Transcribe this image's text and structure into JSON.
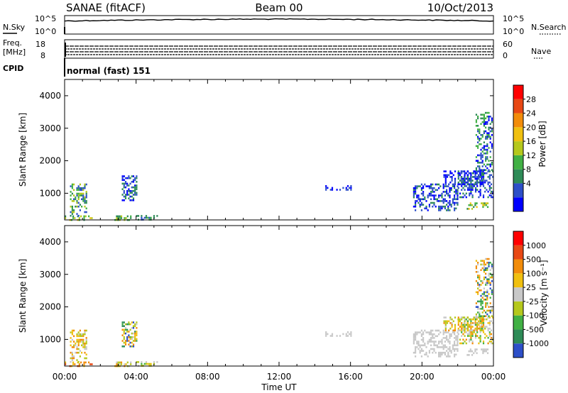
{
  "header": {
    "station": "SANAE (fitACF)",
    "beam": "Beam 00",
    "date": "10/Oct/2013"
  },
  "strips": {
    "nsky_label": "N.Sky",
    "nsky_top": "10^5",
    "nsky_bottom": "10^0",
    "nsearch_label": "N.Search",
    "nsearch_top": "10^5",
    "nsearch_bottom": "10^0",
    "freq_label_1": "Freq.",
    "freq_label_2": "[MHz]",
    "freq_top": "18",
    "freq_bottom": "8",
    "nave_label": "Nave",
    "nave_top": "60",
    "nave_bottom": "0",
    "cpid_label": "CPID",
    "cpid_value": "normal (fast) 151"
  },
  "chart_data": [
    {
      "type": "heatmap",
      "name": "power",
      "ylabel": "Slant Range [km]",
      "ylim": [
        180,
        4500
      ],
      "y_ticks": [
        "4000",
        "3000",
        "2000",
        "1000"
      ],
      "y_tick_values": [
        4000,
        3000,
        2000,
        1000
      ],
      "colorbar": {
        "label": "Power [dB]",
        "ticks": [
          "28",
          "24",
          "20",
          "16",
          "12",
          "8",
          "4"
        ],
        "colors": [
          "#0000ff",
          "#2d4fc8",
          "#2e8b57",
          "#41b044",
          "#b5c81c",
          "#f0c010",
          "#f28c0a",
          "#e84814",
          "#ff0000"
        ]
      },
      "echo_regions": [
        {
          "t0": 0.0,
          "t1": 1.5,
          "r0": 200,
          "r1": 320,
          "level": [
            2,
            5
          ]
        },
        {
          "t0": 0.3,
          "t1": 1.2,
          "r0": 300,
          "r1": 1300,
          "level": [
            1,
            4
          ]
        },
        {
          "t0": 2.7,
          "t1": 3.7,
          "r0": 180,
          "r1": 320,
          "level": [
            2,
            4
          ]
        },
        {
          "t0": 3.2,
          "t1": 4.0,
          "r0": 800,
          "r1": 1550,
          "level": [
            0,
            2
          ]
        },
        {
          "t0": 4.0,
          "t1": 5.2,
          "r0": 180,
          "r1": 330,
          "level": [
            1,
            3
          ]
        },
        {
          "t0": 14.5,
          "t1": 16.0,
          "r0": 1100,
          "r1": 1250,
          "level": [
            0,
            1
          ]
        },
        {
          "t0": 19.5,
          "t1": 22.0,
          "r0": 500,
          "r1": 1300,
          "level": [
            0,
            2
          ]
        },
        {
          "t0": 21.2,
          "t1": 23.5,
          "r0": 1300,
          "r1": 1700,
          "level": [
            0,
            1
          ]
        },
        {
          "t0": 22.0,
          "t1": 24.0,
          "r0": 900,
          "r1": 1700,
          "level": [
            0,
            2
          ]
        },
        {
          "t0": 22.5,
          "t1": 24.0,
          "r0": 500,
          "r1": 720,
          "level": [
            2,
            5
          ]
        },
        {
          "t0": 23.0,
          "t1": 23.9,
          "r0": 1700,
          "r1": 3500,
          "level": [
            0,
            3
          ]
        }
      ]
    },
    {
      "type": "heatmap",
      "name": "velocity",
      "ylabel": "Slant Range [km]",
      "xlabel": "Time UT",
      "ylim": [
        180,
        4500
      ],
      "y_ticks": [
        "4000",
        "3000",
        "2000",
        "1000"
      ],
      "y_tick_values": [
        4000,
        3000,
        2000,
        1000
      ],
      "x_ticks": [
        "00:00",
        "04:00",
        "08:00",
        "12:00",
        "16:00",
        "20:00",
        "00:00"
      ],
      "x_tick_values": [
        0,
        4,
        8,
        12,
        16,
        20,
        24
      ],
      "xlim": [
        0,
        24
      ],
      "colorbar": {
        "label": "Velocity [m s⁻¹]",
        "ticks": [
          "1000",
          "500",
          "100",
          "25",
          "-25",
          "-100",
          "-500",
          "-1000"
        ],
        "colors": [
          "#2d4fc8",
          "#2e8b57",
          "#41b044",
          "#b5c81c",
          "#c8c8c8",
          "#f0c010",
          "#f28c0a",
          "#e84814",
          "#ff0000"
        ]
      },
      "echo_regions": [
        {
          "t0": 0.0,
          "t1": 1.5,
          "r0": 200,
          "r1": 320,
          "level": [
            5,
            7
          ]
        },
        {
          "t0": 0.3,
          "t1": 1.2,
          "r0": 300,
          "r1": 1300,
          "level": [
            3,
            6
          ]
        },
        {
          "t0": 2.7,
          "t1": 3.7,
          "r0": 180,
          "r1": 320,
          "level": [
            3,
            6
          ]
        },
        {
          "t0": 3.2,
          "t1": 4.0,
          "r0": 800,
          "r1": 1550,
          "level": [
            0,
            6
          ]
        },
        {
          "t0": 4.0,
          "t1": 5.2,
          "r0": 180,
          "r1": 330,
          "level": [
            2,
            5
          ]
        },
        {
          "t0": 14.5,
          "t1": 16.0,
          "r0": 1100,
          "r1": 1250,
          "level": [
            4,
            4
          ]
        },
        {
          "t0": 19.5,
          "t1": 22.0,
          "r0": 500,
          "r1": 1300,
          "level": [
            4,
            4
          ]
        },
        {
          "t0": 21.2,
          "t1": 23.5,
          "r0": 1300,
          "r1": 1700,
          "level": [
            3,
            6
          ]
        },
        {
          "t0": 22.0,
          "t1": 24.0,
          "r0": 900,
          "r1": 1700,
          "level": [
            2,
            6
          ]
        },
        {
          "t0": 22.5,
          "t1": 24.0,
          "r0": 500,
          "r1": 720,
          "level": [
            4,
            4
          ]
        },
        {
          "t0": 23.0,
          "t1": 23.9,
          "r0": 1700,
          "r1": 3500,
          "level": [
            0,
            6
          ]
        }
      ]
    }
  ]
}
